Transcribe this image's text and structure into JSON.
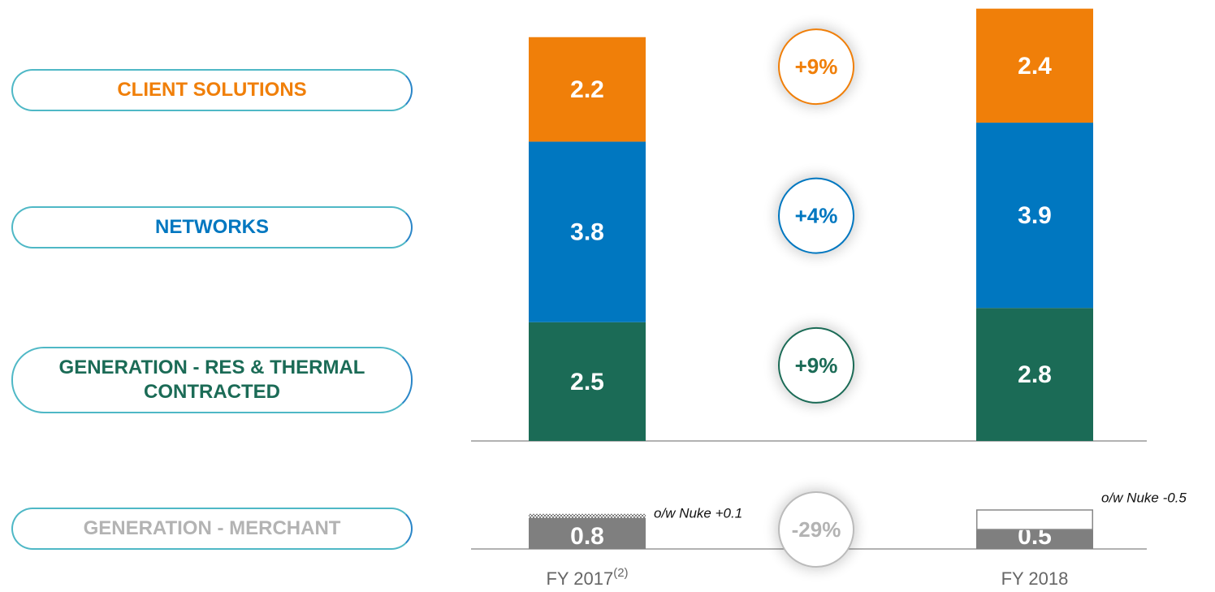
{
  "chart_data": {
    "type": "bar",
    "categories": [
      "FY 2017",
      "FY 2018"
    ],
    "category_footnote": "(2)",
    "series": [
      {
        "name": "GENERATION - RES & THERMAL CONTRACTED",
        "color": "#1b6b56",
        "values": [
          2.5,
          2.8
        ],
        "change": 9,
        "change_label": "+9%"
      },
      {
        "name": "NETWORKS",
        "color": "#0077c0",
        "values": [
          3.8,
          3.9
        ],
        "change": 4,
        "change_label": "+4%"
      },
      {
        "name": "CLIENT SOLUTIONS",
        "color": "#f07f09",
        "values": [
          2.2,
          2.4
        ],
        "change": 9,
        "change_label": "+9%"
      }
    ],
    "merchant": {
      "name": "GENERATION - MERCHANT",
      "color": "#7f7f7f",
      "label_color": "#b3b3b3",
      "values": [
        0.8,
        0.5
      ],
      "nuke": [
        0.1,
        -0.5
      ],
      "nuke_labels": [
        "o/w Nuke +0.1",
        "o/w Nuke -0.5"
      ],
      "change": -29,
      "change_label": "-29%"
    }
  }
}
